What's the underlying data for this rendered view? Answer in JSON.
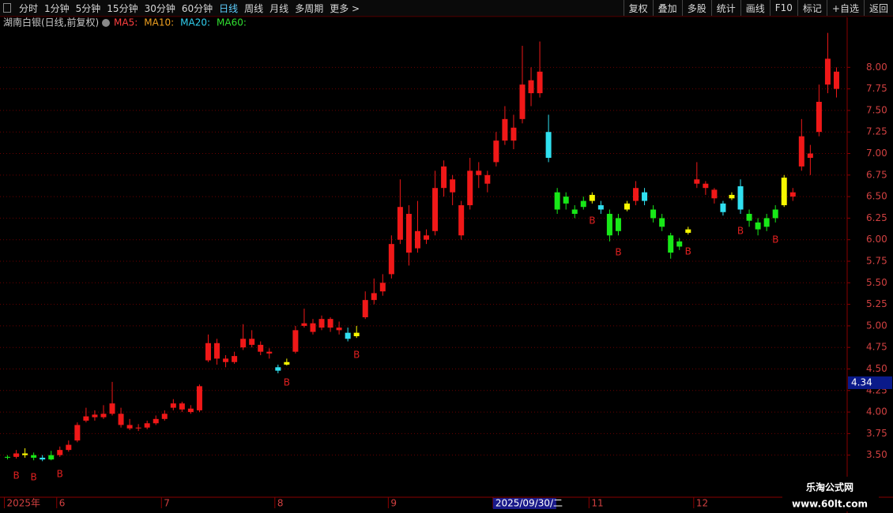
{
  "toolbar": {
    "left": [
      "分时",
      "1分钟",
      "5分钟",
      "15分钟",
      "30分钟",
      "60分钟",
      "日线",
      "周线",
      "月线",
      "多周期",
      "更多 >"
    ],
    "active": "日线",
    "right": [
      "复权",
      "叠加",
      "多股",
      "统计",
      "画线",
      "F10",
      "标记",
      "+自选",
      "返回"
    ]
  },
  "chart_data": {
    "type": "candlestick",
    "title": "湖南白银(日线,前复权)",
    "indicators": [
      {
        "name": "MA5:",
        "color": "#ff4040"
      },
      {
        "name": "MA10:",
        "color": "#f0a020"
      },
      {
        "name": "MA20:",
        "color": "#30d0f0"
      },
      {
        "name": "MA60:",
        "color": "#30e030"
      }
    ],
    "ylim": [
      3.03,
      8.58
    ],
    "yticks": [
      {
        "value": 3.5,
        "label": "3.50"
      },
      {
        "value": 3.75,
        "label": "3.75"
      },
      {
        "value": 4,
        "label": "4.00"
      },
      {
        "value": 4.25,
        "label": "4.25"
      },
      {
        "value": 4.5,
        "label": "4.50"
      },
      {
        "value": 4.75,
        "label": "4.75"
      },
      {
        "value": 5,
        "label": "5.00"
      },
      {
        "value": 5.25,
        "label": "5.25"
      },
      {
        "value": 5.5,
        "label": "5.50"
      },
      {
        "value": 5.75,
        "label": "5.75"
      },
      {
        "value": 6,
        "label": "6.00"
      },
      {
        "value": 6.25,
        "label": "6.25"
      },
      {
        "value": 6.5,
        "label": "6.50"
      },
      {
        "value": 6.75,
        "label": "6.75"
      },
      {
        "value": 7,
        "label": "7.00"
      },
      {
        "value": 7.25,
        "label": "7.25"
      },
      {
        "value": 7.5,
        "label": "7.50"
      },
      {
        "value": 7.75,
        "label": "7.75"
      },
      {
        "value": 8,
        "label": "8.00"
      }
    ],
    "grid": true,
    "price_marker": {
      "value": 4.34,
      "label": "4.34"
    },
    "categories": [
      "2025年",
      null,
      null,
      null,
      null,
      null,
      "6",
      null,
      null,
      null,
      null,
      null,
      null,
      null,
      null,
      null,
      null,
      null,
      "7",
      null,
      null,
      null,
      null,
      null,
      null,
      null,
      null,
      null,
      null,
      null,
      null,
      "8",
      null,
      null,
      null,
      null,
      null,
      null,
      null,
      null,
      null,
      null,
      null,
      null,
      "9",
      null,
      null,
      null,
      null,
      null,
      null,
      null,
      null,
      null,
      null,
      null,
      "2025/09/30/二",
      null,
      null,
      null,
      null,
      null,
      null,
      null,
      null,
      null,
      null,
      "11",
      null,
      null,
      null,
      null,
      null,
      null,
      null,
      null,
      null,
      null,
      null,
      "12",
      null,
      null,
      null,
      null,
      null,
      null,
      null,
      null,
      null,
      null,
      null,
      null,
      null,
      null,
      null,
      null
    ],
    "highlight_category": "2025/09/30/二",
    "ohlc": [
      [
        3.47,
        3.5,
        3.45,
        3.48
      ],
      [
        3.48,
        3.56,
        3.46,
        3.52
      ],
      [
        3.52,
        3.58,
        3.47,
        3.5
      ],
      [
        3.5,
        3.53,
        3.44,
        3.47
      ],
      [
        3.47,
        3.5,
        3.43,
        3.45
      ],
      [
        3.45,
        3.55,
        3.44,
        3.5
      ],
      [
        3.5,
        3.6,
        3.48,
        3.56
      ],
      [
        3.56,
        3.67,
        3.54,
        3.62
      ],
      [
        3.67,
        3.88,
        3.65,
        3.85
      ],
      [
        3.9,
        4.05,
        3.88,
        3.95
      ],
      [
        3.97,
        4.02,
        3.9,
        3.94
      ],
      [
        3.94,
        4.08,
        3.92,
        3.98
      ],
      [
        3.98,
        4.35,
        3.96,
        4.1
      ],
      [
        3.98,
        4.05,
        3.82,
        3.85
      ],
      [
        3.85,
        3.92,
        3.79,
        3.81
      ],
      [
        3.81,
        3.86,
        3.78,
        3.82
      ],
      [
        3.82,
        3.9,
        3.8,
        3.87
      ],
      [
        3.87,
        3.96,
        3.85,
        3.92
      ],
      [
        3.92,
        4.02,
        3.9,
        3.98
      ],
      [
        4.05,
        4.15,
        4.02,
        4.1
      ],
      [
        4.1,
        4.12,
        4.0,
        4.03
      ],
      [
        4.04,
        4.08,
        3.98,
        4.0
      ],
      [
        4.02,
        4.32,
        4.0,
        4.3
      ],
      [
        4.6,
        4.9,
        4.58,
        4.8
      ],
      [
        4.8,
        4.85,
        4.55,
        4.62
      ],
      [
        4.62,
        4.66,
        4.52,
        4.58
      ],
      [
        4.58,
        4.7,
        4.56,
        4.65
      ],
      [
        4.75,
        5.02,
        4.72,
        4.85
      ],
      [
        4.85,
        4.95,
        4.75,
        4.78
      ],
      [
        4.78,
        4.82,
        4.66,
        4.7
      ],
      [
        4.7,
        4.74,
        4.62,
        4.68
      ],
      [
        4.52,
        4.55,
        4.45,
        4.48
      ],
      [
        4.55,
        4.62,
        4.54,
        4.58
      ],
      [
        4.7,
        5.0,
        4.68,
        4.95
      ],
      [
        5.0,
        5.2,
        4.98,
        5.03
      ],
      [
        5.03,
        5.08,
        4.9,
        4.93
      ],
      [
        4.98,
        5.12,
        4.95,
        5.08
      ],
      [
        5.08,
        5.1,
        4.93,
        4.98
      ],
      [
        4.98,
        5.05,
        4.9,
        4.95
      ],
      [
        4.92,
        4.98,
        4.82,
        4.85
      ],
      [
        4.88,
        5.0,
        4.86,
        4.92
      ],
      [
        5.1,
        5.4,
        5.08,
        5.3
      ],
      [
        5.3,
        5.55,
        5.25,
        5.38
      ],
      [
        5.4,
        5.6,
        5.35,
        5.5
      ],
      [
        5.6,
        6.05,
        5.55,
        5.95
      ],
      [
        6.0,
        6.7,
        5.95,
        6.38
      ],
      [
        6.3,
        6.4,
        5.7,
        5.85
      ],
      [
        5.9,
        6.45,
        5.85,
        6.1
      ],
      [
        6.05,
        6.12,
        5.95,
        6.0
      ],
      [
        6.1,
        6.8,
        6.05,
        6.6
      ],
      [
        6.6,
        6.92,
        6.5,
        6.85
      ],
      [
        6.7,
        6.75,
        6.4,
        6.55
      ],
      [
        6.4,
        6.45,
        6.0,
        6.05
      ],
      [
        6.4,
        6.95,
        6.35,
        6.8
      ],
      [
        6.8,
        6.9,
        6.6,
        6.75
      ],
      [
        6.75,
        6.8,
        6.55,
        6.65
      ],
      [
        6.9,
        7.25,
        6.85,
        7.15
      ],
      [
        7.15,
        7.55,
        7.1,
        7.4
      ],
      [
        7.3,
        7.45,
        7.05,
        7.15
      ],
      [
        7.4,
        8.25,
        7.35,
        7.8
      ],
      [
        7.85,
        8.0,
        7.55,
        7.7
      ],
      [
        7.7,
        8.3,
        7.65,
        7.95
      ],
      [
        6.95,
        7.45,
        6.9,
        7.25
      ],
      [
        6.35,
        6.6,
        6.3,
        6.55
      ],
      [
        6.5,
        6.55,
        6.35,
        6.42
      ],
      [
        6.35,
        6.4,
        6.25,
        6.3
      ],
      [
        6.38,
        6.5,
        6.35,
        6.45
      ],
      [
        6.45,
        6.55,
        6.42,
        6.52
      ],
      [
        6.4,
        6.45,
        6.3,
        6.35
      ],
      [
        6.3,
        6.35,
        5.98,
        6.05
      ],
      [
        6.1,
        6.3,
        6.05,
        6.25
      ],
      [
        6.35,
        6.45,
        6.33,
        6.42
      ],
      [
        6.45,
        6.68,
        6.4,
        6.6
      ],
      [
        6.55,
        6.6,
        6.4,
        6.45
      ],
      [
        6.35,
        6.4,
        6.2,
        6.25
      ],
      [
        6.25,
        6.3,
        6.1,
        6.15
      ],
      [
        6.05,
        6.08,
        5.78,
        5.85
      ],
      [
        5.92,
        6.02,
        5.88,
        5.98
      ],
      [
        6.08,
        6.15,
        6.06,
        6.12
      ],
      [
        6.65,
        6.9,
        6.6,
        6.7
      ],
      [
        6.65,
        6.68,
        6.52,
        6.6
      ],
      [
        6.58,
        6.6,
        6.42,
        6.48
      ],
      [
        6.42,
        6.45,
        6.28,
        6.32
      ],
      [
        6.48,
        6.55,
        6.46,
        6.52
      ],
      [
        6.35,
        6.7,
        6.3,
        6.62
      ],
      [
        6.3,
        6.35,
        6.15,
        6.22
      ],
      [
        6.2,
        6.25,
        6.05,
        6.12
      ],
      [
        6.15,
        6.3,
        6.1,
        6.25
      ],
      [
        6.25,
        6.4,
        6.2,
        6.35
      ],
      [
        6.4,
        6.75,
        6.38,
        6.72
      ],
      [
        6.55,
        6.6,
        6.45,
        6.5
      ],
      [
        6.85,
        7.4,
        6.8,
        7.2
      ],
      [
        6.95,
        7.1,
        6.75,
        7.0
      ],
      [
        7.25,
        7.8,
        7.2,
        7.6
      ],
      [
        7.8,
        8.4,
        7.7,
        8.1
      ],
      [
        7.95,
        8.0,
        7.65,
        7.75
      ]
    ],
    "candle_colors": [
      "#18e818",
      "#f01818",
      "#f8f800",
      "#18e818",
      "#30e0f0",
      "#18e818",
      "#f01818",
      "#f01818",
      "#f01818",
      "#f01818",
      "#f01818",
      "#f01818",
      "#f01818",
      "#f01818",
      "#f01818",
      "#f01818",
      "#f01818",
      "#f01818",
      "#f01818",
      "#f01818",
      "#f01818",
      "#f01818",
      "#f01818",
      "#f01818",
      "#f01818",
      "#f01818",
      "#f01818",
      "#f01818",
      "#f01818",
      "#f01818",
      "#f01818",
      "#30e0f0",
      "#f8f800",
      "#f01818",
      "#f01818",
      "#f01818",
      "#f01818",
      "#f01818",
      "#f01818",
      "#30e0f0",
      "#f8f800",
      "#f01818",
      "#f01818",
      "#f01818",
      "#f01818",
      "#f01818",
      "#f01818",
      "#f01818",
      "#f01818",
      "#f01818",
      "#f01818",
      "#f01818",
      "#f01818",
      "#f01818",
      "#f01818",
      "#f01818",
      "#f01818",
      "#f01818",
      "#f01818",
      "#f01818",
      "#f01818",
      "#f01818",
      "#30e0f0",
      "#18e818",
      "#18e818",
      "#18e818",
      "#18e818",
      "#f8f800",
      "#30e0f0",
      "#18e818",
      "#18e818",
      "#f8f800",
      "#f01818",
      "#30e0f0",
      "#18e818",
      "#18e818",
      "#18e818",
      "#18e818",
      "#f8f800",
      "#f01818",
      "#f01818",
      "#f01818",
      "#30e0f0",
      "#f8f800",
      "#30e0f0",
      "#18e818",
      "#18e818",
      "#18e818",
      "#18e818",
      "#f8f800",
      "#f01818",
      "#f01818",
      "#f01818",
      "#f01818",
      "#f01818",
      "#f01818"
    ],
    "signals": [
      null,
      "B",
      null,
      "B",
      null,
      null,
      "B",
      null,
      null,
      null,
      null,
      null,
      null,
      null,
      null,
      null,
      null,
      null,
      null,
      null,
      null,
      null,
      null,
      null,
      null,
      null,
      null,
      null,
      null,
      null,
      null,
      null,
      "B",
      null,
      null,
      null,
      null,
      null,
      null,
      null,
      "B",
      null,
      null,
      null,
      null,
      null,
      null,
      null,
      null,
      null,
      null,
      null,
      null,
      null,
      null,
      null,
      null,
      null,
      null,
      null,
      null,
      null,
      null,
      null,
      null,
      null,
      null,
      "B",
      null,
      null,
      "B",
      null,
      null,
      null,
      null,
      null,
      null,
      null,
      "B",
      null,
      null,
      null,
      null,
      null,
      "B",
      null,
      null,
      null,
      "B",
      null,
      null,
      null,
      null,
      null,
      null,
      null
    ],
    "signal_color": "#e02020"
  },
  "watermark": {
    "title": "乐淘公式网",
    "url": "www.60lt.com"
  }
}
